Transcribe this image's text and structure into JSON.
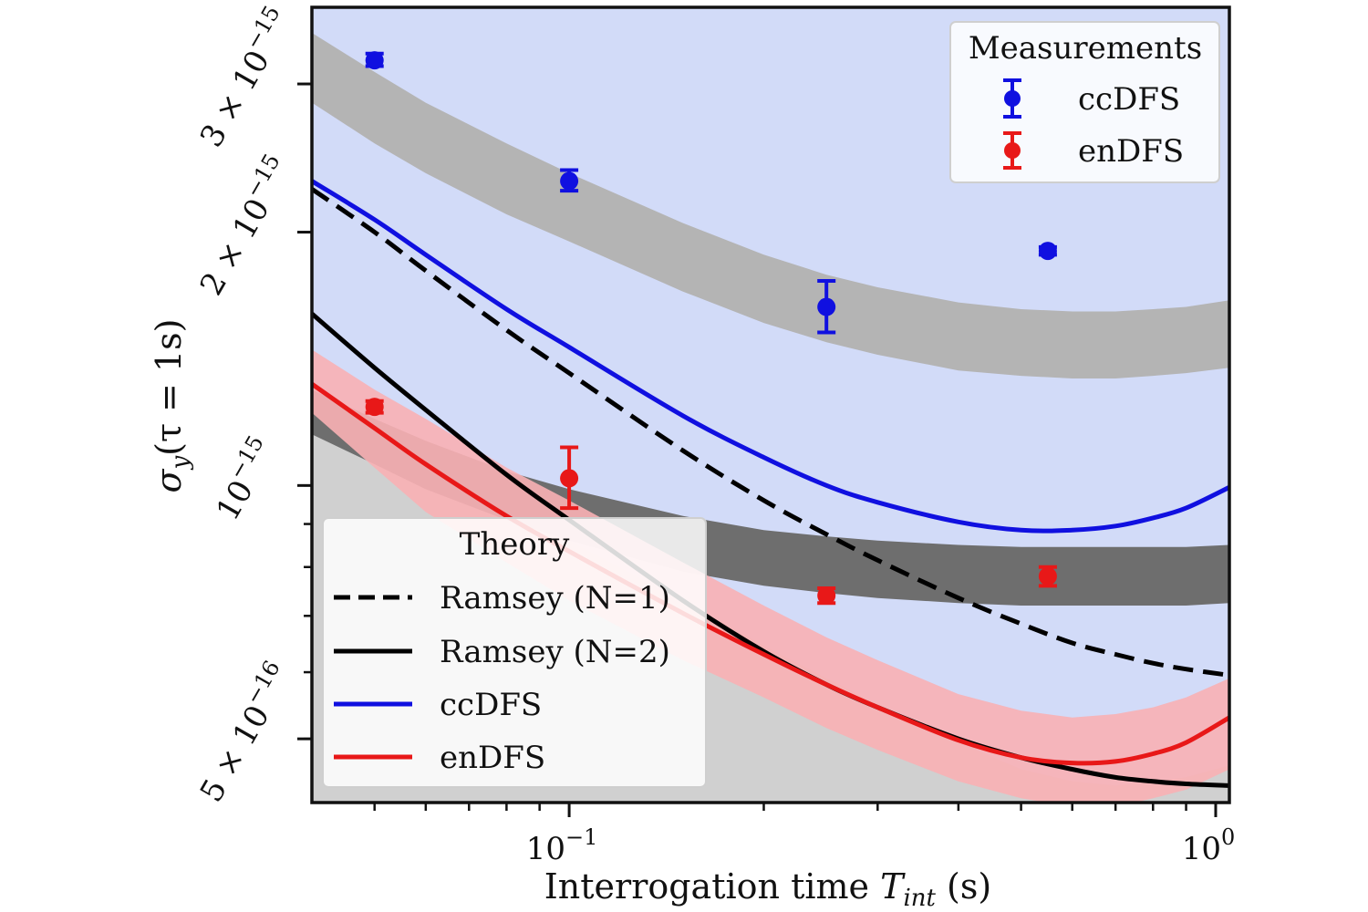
{
  "chart_data": {
    "type": "line",
    "xlabel": "Interrogation time T_int (s)",
    "xlabel_main": "Interrogation time ",
    "xlabel_sym": "T",
    "xlabel_sub": "int",
    "xlabel_unit": " (s)",
    "ylabel": "σ_y(τ = 1s)",
    "ylabel_sym": "σ",
    "ylabel_sub": "y",
    "ylabel_rest": "(τ = 1s)",
    "x_scale": "log",
    "y_scale": "log",
    "xlim": [
      0.04,
      1.05
    ],
    "ylim": [
      4.2e-16,
      3.7e-15
    ],
    "x_ticks": [
      {
        "value": 0.1,
        "base": "10",
        "exp": "−1"
      },
      {
        "value": 1.0,
        "base": "10",
        "exp": "0"
      }
    ],
    "y_ticks": [
      {
        "value": 3e-15,
        "label": "3 × 10−15"
      },
      {
        "value": 2e-15,
        "label": "2 × 10−15"
      },
      {
        "value": 1e-15,
        "label": "10−15"
      },
      {
        "value": 5e-16,
        "label": "5 × 10−16"
      }
    ],
    "grid": false,
    "colors": {
      "ccdfs": "#1010e0",
      "endfs": "#e81818",
      "ccdfs_region": "#d2dbf8",
      "endfs_region": "#f8b0b4",
      "gray_region": "#d0d0d0",
      "band_light": "#b4b4b4",
      "band_dark": "#6e6e6e",
      "ramsey": "#000000"
    },
    "regions": [
      {
        "name": "endfs-limit-region",
        "x": [
          0.04,
          0.06,
          0.08,
          0.1,
          0.15,
          0.2,
          0.25,
          0.3,
          0.4,
          0.5,
          0.6,
          0.7,
          0.8,
          0.9,
          1.05
        ],
        "y": [
          1.22e-15,
          1.05e-15,
          9.3e-16,
          8.6e-16,
          7.3e-16,
          6.45e-16,
          5.9e-16,
          5.5e-16,
          4.95e-16,
          4.6e-16,
          4.45e-16,
          4.4e-16,
          4.45e-16,
          4.5e-16,
          4.65e-16
        ]
      }
    ],
    "bands": [
      {
        "name": "ccdfs-measurement-band",
        "x": [
          0.04,
          0.05,
          0.06,
          0.08,
          0.1,
          0.15,
          0.2,
          0.25,
          0.3,
          0.4,
          0.5,
          0.6,
          0.7,
          0.8,
          0.9,
          1.05
        ],
        "upper": [
          3.45e-15,
          3.1e-15,
          2.85e-15,
          2.55e-15,
          2.35e-15,
          2.05e-15,
          1.88e-15,
          1.78e-15,
          1.72e-15,
          1.65e-15,
          1.62e-15,
          1.61e-15,
          1.61e-15,
          1.62e-15,
          1.63e-15,
          1.66e-15
        ],
        "lower": [
          2.85e-15,
          2.55e-15,
          2.35e-15,
          2.1e-15,
          1.95e-15,
          1.7e-15,
          1.56e-15,
          1.48e-15,
          1.43e-15,
          1.37e-15,
          1.35e-15,
          1.34e-15,
          1.34e-15,
          1.35e-15,
          1.36e-15,
          1.38e-15
        ]
      },
      {
        "name": "endfs-measurement-band",
        "x": [
          0.04,
          0.05,
          0.06,
          0.08,
          0.1,
          0.15,
          0.2,
          0.25,
          0.3,
          0.4,
          0.5,
          0.6,
          0.7,
          0.8,
          0.9,
          1.05
        ],
        "upper": [
          1.3e-15,
          1.2e-15,
          1.13e-15,
          1.04e-15,
          9.9e-16,
          9.2e-16,
          8.85e-16,
          8.7e-16,
          8.6e-16,
          8.5e-16,
          8.45e-16,
          8.45e-16,
          8.45e-16,
          8.45e-16,
          8.45e-16,
          8.5e-16
        ],
        "lower": [
          1.15e-15,
          1.06e-15,
          9.9e-16,
          9.1e-16,
          8.6e-16,
          7.9e-16,
          7.6e-16,
          7.45e-16,
          7.35e-16,
          7.25e-16,
          7.2e-16,
          7.2e-16,
          7.2e-16,
          7.2e-16,
          7.2e-16,
          7.25e-16
        ]
      },
      {
        "name": "endfs-theory-band",
        "x": [
          0.04,
          0.05,
          0.06,
          0.08,
          0.1,
          0.15,
          0.2,
          0.25,
          0.3,
          0.4,
          0.5,
          0.6,
          0.7,
          0.8,
          0.9,
          1.05
        ],
        "upper": [
          1.45e-15,
          1.3e-15,
          1.2e-15,
          1.05e-15,
          9.6e-16,
          8.1e-16,
          7.2e-16,
          6.6e-16,
          6.2e-16,
          5.65e-16,
          5.4e-16,
          5.3e-16,
          5.35e-16,
          5.45e-16,
          5.6e-16,
          5.9e-16
        ],
        "lower": [
          1.22e-15,
          1.05e-15,
          9.3e-16,
          8.1e-16,
          7.3e-16,
          6.2e-16,
          5.6e-16,
          5.15e-16,
          4.85e-16,
          4.45e-16,
          4.25e-16,
          4.15e-16,
          4.15e-16,
          4.25e-16,
          4.35e-16,
          4.6e-16
        ]
      }
    ],
    "series": [
      {
        "name": "Ramsey (N=1)",
        "style": "dashed",
        "color": "#000000",
        "x": [
          0.04,
          0.05,
          0.06,
          0.08,
          0.1,
          0.15,
          0.2,
          0.25,
          0.3,
          0.4,
          0.5,
          0.6,
          0.7,
          0.8,
          0.9,
          1.05
        ],
        "y": [
          2.25e-15,
          2e-15,
          1.8e-15,
          1.53e-15,
          1.36e-15,
          1.1e-15,
          9.6e-16,
          8.75e-16,
          8.15e-16,
          7.35e-16,
          6.85e-16,
          6.5e-16,
          6.3e-16,
          6.15e-16,
          6.05e-16,
          5.95e-16
        ]
      },
      {
        "name": "Ramsey (N=2)",
        "style": "solid",
        "color": "#000000",
        "x": [
          0.04,
          0.05,
          0.06,
          0.08,
          0.1,
          0.15,
          0.2,
          0.25,
          0.3,
          0.4,
          0.5,
          0.6,
          0.7,
          0.8,
          0.9,
          1.05
        ],
        "y": [
          1.6e-15,
          1.38e-15,
          1.23e-15,
          1.03e-15,
          9.1e-16,
          7.3e-16,
          6.35e-16,
          5.8e-16,
          5.45e-16,
          5e-16,
          4.75e-16,
          4.6e-16,
          4.5e-16,
          4.45e-16,
          4.42e-16,
          4.4e-16
        ]
      },
      {
        "name": "ccDFS",
        "style": "solid",
        "color": "#1010e0",
        "x": [
          0.04,
          0.05,
          0.06,
          0.08,
          0.1,
          0.15,
          0.2,
          0.25,
          0.3,
          0.4,
          0.5,
          0.6,
          0.7,
          0.8,
          0.9,
          1.05
        ],
        "y": [
          2.3e-15,
          2.07e-15,
          1.88e-15,
          1.62e-15,
          1.46e-15,
          1.21e-15,
          1.08e-15,
          1e-15,
          9.55e-16,
          9.05e-16,
          8.85e-16,
          8.85e-16,
          8.95e-16,
          9.15e-16,
          9.4e-16,
          9.95e-16
        ]
      },
      {
        "name": "enDFS",
        "style": "solid",
        "color": "#e81818",
        "x": [
          0.04,
          0.05,
          0.06,
          0.08,
          0.1,
          0.15,
          0.2,
          0.25,
          0.3,
          0.4,
          0.5,
          0.6,
          0.7,
          0.8,
          0.9,
          1.05
        ],
        "y": [
          1.32e-15,
          1.17e-15,
          1.06e-15,
          9.2e-16,
          8.35e-16,
          7.05e-16,
          6.3e-16,
          5.8e-16,
          5.45e-16,
          4.98e-16,
          4.75e-16,
          4.68e-16,
          4.7e-16,
          4.8e-16,
          4.95e-16,
          5.3e-16
        ]
      }
    ],
    "measurements": [
      {
        "name": "ccDFS",
        "color": "#1010e0",
        "points": [
          {
            "x": 0.05,
            "y": 3.2e-15,
            "err_low": 3.15e-15,
            "err_high": 3.26e-15
          },
          {
            "x": 0.1,
            "y": 2.3e-15,
            "err_low": 2.24e-15,
            "err_high": 2.37e-15
          },
          {
            "x": 0.25,
            "y": 1.63e-15,
            "err_low": 1.52e-15,
            "err_high": 1.75e-15
          },
          {
            "x": 0.55,
            "y": 1.9e-15,
            "err_low": 1.88e-15,
            "err_high": 1.92e-15
          }
        ]
      },
      {
        "name": "enDFS",
        "color": "#e81818",
        "points": [
          {
            "x": 0.05,
            "y": 1.24e-15,
            "err_low": 1.22e-15,
            "err_high": 1.26e-15
          },
          {
            "x": 0.1,
            "y": 1.02e-15,
            "err_low": 9.4e-16,
            "err_high": 1.11e-15
          },
          {
            "x": 0.25,
            "y": 7.4e-16,
            "err_low": 7.25e-16,
            "err_high": 7.55e-16
          },
          {
            "x": 0.55,
            "y": 7.8e-16,
            "err_low": 7.6e-16,
            "err_high": 8e-16
          }
        ]
      }
    ],
    "legends": [
      {
        "title": "Measurements",
        "position": "top-right",
        "entries": [
          {
            "label": "ccDFS",
            "color": "#1010e0",
            "kind": "errorbar"
          },
          {
            "label": "enDFS",
            "color": "#e81818",
            "kind": "errorbar"
          }
        ]
      },
      {
        "title": "Theory",
        "position": "bottom-left",
        "entries": [
          {
            "label": "Ramsey (N=1)",
            "color": "#000000",
            "kind": "dashed"
          },
          {
            "label": "Ramsey (N=2)",
            "color": "#000000",
            "kind": "solid"
          },
          {
            "label": "ccDFS",
            "color": "#1010e0",
            "kind": "solid"
          },
          {
            "label": "enDFS",
            "color": "#e81818",
            "kind": "solid"
          }
        ]
      }
    ]
  }
}
